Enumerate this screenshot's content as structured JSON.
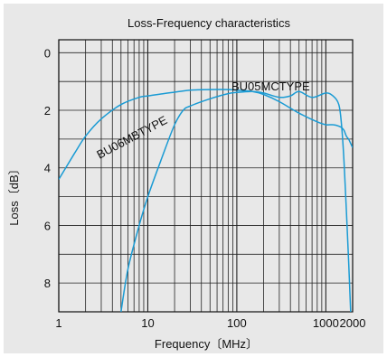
{
  "chart_data": {
    "type": "line",
    "title": "Loss-Frequency characteristics",
    "xlabel": "Frequency〔MHz〕",
    "ylabel": "Loss〔dB〕",
    "x_scale": "log",
    "xlim": [
      1,
      2000
    ],
    "ylim": [
      0,
      9
    ],
    "y_inverted": true,
    "x_ticks": [
      1,
      10,
      100,
      1000,
      2000
    ],
    "x_tick_labels": [
      "1",
      "10",
      "100",
      "1000",
      "2000"
    ],
    "y_ticks": [
      0,
      2,
      4,
      6,
      8
    ],
    "y_tick_labels": [
      "0",
      "2",
      "4",
      "6",
      "8"
    ],
    "grid": true,
    "line_color": "#1a9bd4",
    "series": [
      {
        "name": "BU06MBTYPE",
        "x": [
          1,
          1.5,
          2,
          3,
          5,
          8,
          10,
          15,
          20,
          30,
          50,
          80,
          100,
          150,
          200,
          300,
          500,
          800,
          1000,
          1200,
          1400,
          1500,
          1600,
          1700,
          1800,
          1900,
          2000
        ],
        "y": [
          4.4,
          3.5,
          2.9,
          2.3,
          1.8,
          1.55,
          1.5,
          1.42,
          1.37,
          1.3,
          1.28,
          1.28,
          1.3,
          1.35,
          1.45,
          1.7,
          2.1,
          2.4,
          2.5,
          2.5,
          2.55,
          2.6,
          2.7,
          2.9,
          3.0,
          3.15,
          3.3
        ]
      },
      {
        "name": "BU05MCTYPE",
        "x": [
          5,
          6,
          8,
          10,
          15,
          20,
          25,
          30,
          50,
          80,
          100,
          150,
          200,
          300,
          400,
          500,
          700,
          1000,
          1200,
          1400,
          1500,
          1600,
          1700,
          1800,
          1900
        ],
        "y": [
          9.0,
          7.5,
          6.0,
          5.0,
          3.5,
          2.5,
          2.0,
          1.85,
          1.6,
          1.42,
          1.38,
          1.35,
          1.4,
          1.55,
          1.5,
          1.35,
          1.55,
          1.4,
          1.5,
          1.8,
          2.5,
          3.8,
          5.5,
          7.2,
          9.0
        ]
      }
    ],
    "annotations": [
      {
        "text": "BU05MCTYPE",
        "series": "BU05MCTYPE"
      },
      {
        "text": "BU06MBTYPE",
        "series": "BU06MBTYPE"
      }
    ]
  }
}
